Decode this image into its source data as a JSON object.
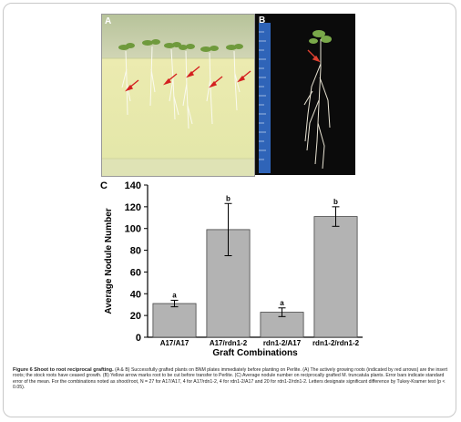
{
  "figure": {
    "panel_a_label": "A",
    "panel_b_label": "B",
    "panel_c_label": "C",
    "caption": {
      "title": "Figure 6 Shoot to root reciprocal grafting.",
      "text": "(A & B) Successfully grafted plants on BNM plates immediately before planting on Perlite. (A) The actively growing roots (indicated by red arrows) are the insert roots; the stock roots have ceased growth. (B) Yellow arrow marks root to be cut before transfer to Perlite. (C) Average nodule number on reciprocally grafted M. truncatula plants. Error bars indicate standard error of the mean. For the combinations noted as shoot/root, N = 27 for A17/A17, 4 for A17/rdn1-2, 4 for rdn1-2/A17 and 20 for rdn1-2/rdn1-2. Letters designate significant difference by Tukey-Kramer test (p < 0.05)."
    }
  },
  "chart_data": {
    "type": "bar",
    "title": "",
    "xlabel": "Graft Combinations",
    "ylabel": "Average Nodule Number",
    "ylim": [
      0,
      140
    ],
    "yticks": [
      0,
      20,
      40,
      60,
      80,
      100,
      120,
      140
    ],
    "categories": [
      "A17/A17",
      "A17/rdn1-2",
      "rdn1-2/A17",
      "rdn1-2/rdn1-2"
    ],
    "values": [
      31,
      99,
      23,
      111
    ],
    "errors": [
      3,
      24,
      4,
      9
    ],
    "letters": [
      "a",
      "b",
      "a",
      "b"
    ],
    "bar_color": "#b3b3b3",
    "grid": false
  }
}
